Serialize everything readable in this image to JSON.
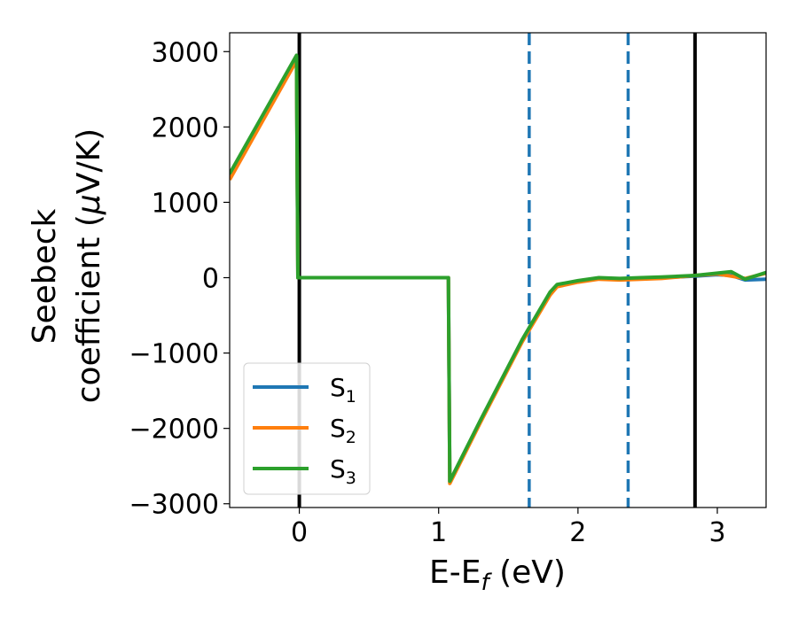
{
  "chart_data": {
    "type": "line",
    "xlabel": {
      "main": "E-E",
      "sub": "f",
      "suffix": " (eV)"
    },
    "ylabel": {
      "line1": "Seebeck",
      "line2_prefix": "coefficient  (",
      "line2_mu": "μ",
      "line2_suffix": "V/K)"
    },
    "xlim": [
      -0.5,
      3.35
    ],
    "ylim": [
      -3050,
      3250
    ],
    "xticks": [
      0,
      1,
      2,
      3
    ],
    "yticks": [
      -3000,
      -2000,
      -1000,
      0,
      1000,
      2000,
      3000
    ],
    "vlines": [
      {
        "x": 0.0,
        "style": "solid",
        "color": "#000000"
      },
      {
        "x": 1.65,
        "style": "dashed",
        "color": "#1f77b4"
      },
      {
        "x": 2.36,
        "style": "dashed",
        "color": "#1f77b4"
      },
      {
        "x": 2.84,
        "style": "solid",
        "color": "#000000"
      }
    ],
    "legend_position": "lower-left",
    "series": [
      {
        "name": "S",
        "sub": "1",
        "color": "#1f77b4",
        "x": [
          -0.5,
          -0.02,
          -0.01,
          1.07,
          1.08,
          1.3,
          1.6,
          1.8,
          1.85,
          2.0,
          2.15,
          2.3,
          2.45,
          2.6,
          2.84,
          3.0,
          3.1,
          3.2,
          3.35
        ],
        "y": [
          1350,
          2920,
          0,
          0,
          -2710,
          -1900,
          -830,
          -200,
          -100,
          -50,
          -10,
          -20,
          -10,
          0,
          20,
          40,
          30,
          -30,
          -20
        ]
      },
      {
        "name": "S",
        "sub": "2",
        "color": "#ff7f0e",
        "x": [
          -0.5,
          -0.02,
          -0.01,
          1.07,
          1.08,
          1.3,
          1.6,
          1.8,
          1.85,
          2.0,
          2.15,
          2.3,
          2.45,
          2.6,
          2.84,
          3.0,
          3.1,
          3.2,
          3.35
        ],
        "y": [
          1300,
          2880,
          0,
          0,
          -2730,
          -1920,
          -850,
          -230,
          -120,
          -60,
          -20,
          -30,
          -20,
          -10,
          30,
          50,
          20,
          -10,
          60
        ]
      },
      {
        "name": "S",
        "sub": "3",
        "color": "#2ca02c",
        "x": [
          -0.5,
          -0.02,
          -0.01,
          1.07,
          1.08,
          1.3,
          1.6,
          1.8,
          1.85,
          2.0,
          2.15,
          2.3,
          2.45,
          2.6,
          2.84,
          3.0,
          3.1,
          3.2,
          3.35
        ],
        "y": [
          1380,
          2950,
          0,
          0,
          -2700,
          -1890,
          -820,
          -190,
          -90,
          -40,
          0,
          -10,
          0,
          10,
          30,
          60,
          80,
          -20,
          70
        ]
      }
    ]
  }
}
